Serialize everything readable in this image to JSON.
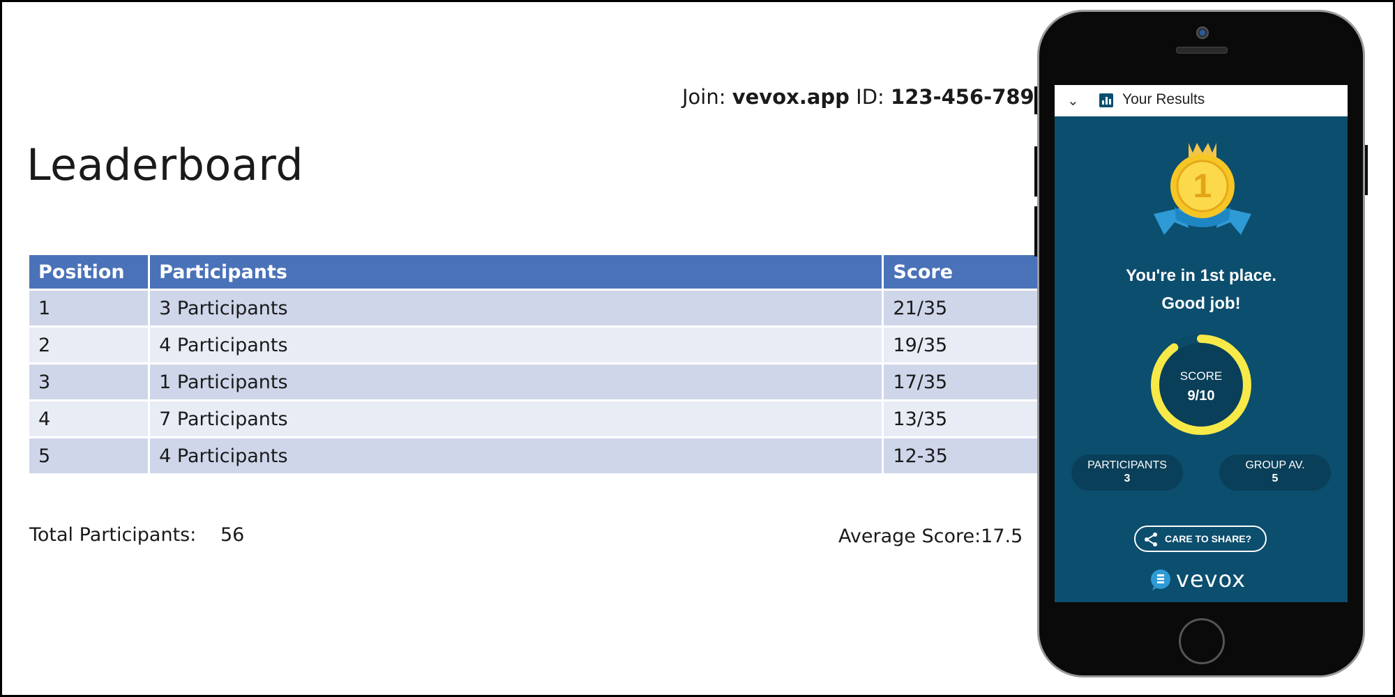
{
  "slide": {
    "join_label": "Join:",
    "join_site": "vevox.app",
    "id_label": "ID:",
    "id_value": "123-456-789",
    "title": "Leaderboard",
    "table": {
      "headers": [
        "Position",
        "Participants",
        "Score"
      ],
      "rows": [
        [
          "1",
          "3 Participants",
          "21/35"
        ],
        [
          "2",
          "4 Participants",
          "19/35"
        ],
        [
          "3",
          "1 Participants",
          "17/35"
        ],
        [
          "4",
          "7 Participants",
          "13/35"
        ],
        [
          "5",
          "4 Participants",
          "12-35"
        ]
      ]
    },
    "total_label": "Total Participants:",
    "total_value": "56",
    "average_text": "Average Score:17.5"
  },
  "phone": {
    "header_title": "Your Results",
    "chevron_icon": "chevron-down-icon",
    "results_icon": "bar-chart-icon",
    "medal_rank": "1",
    "message_line1": "You're in 1st place.",
    "message_line2": "Good job!",
    "score_label": "SCORE",
    "score_value": "9/10",
    "score_fraction": 0.9,
    "participants_label": "PARTICIPANTS",
    "participants_value": "3",
    "group_avg_label": "GROUP AV.",
    "group_avg_value": "5",
    "share_label": "CARE TO SHARE?",
    "brand": "vevox"
  },
  "colors": {
    "table_header": "#4a72b8",
    "row_odd": "#cfd6ea",
    "row_even": "#e8ecf5",
    "phone_screen": "#0c4e6e",
    "ring": "#f7e948",
    "medal_gold": "#f6c625",
    "ribbon": "#2f9bd6"
  }
}
